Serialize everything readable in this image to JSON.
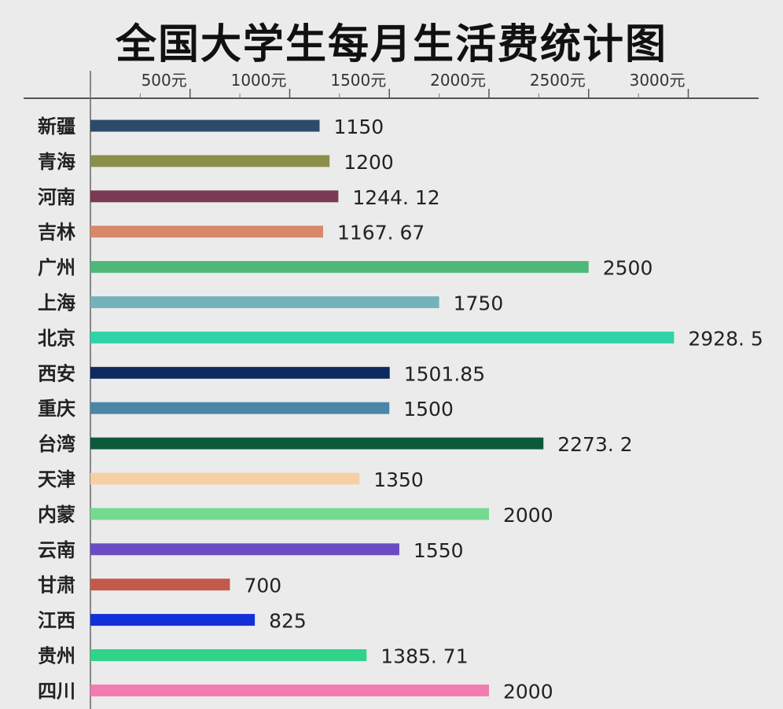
{
  "chart_data": {
    "type": "bar",
    "orientation": "horizontal",
    "title": "全国大学生每月生活费统计图",
    "xlabel": "",
    "ylabel": "",
    "xlim": [
      0,
      3000
    ],
    "ticks": [
      {
        "value": 500,
        "label": "500元"
      },
      {
        "value": 1000,
        "label": "1000元"
      },
      {
        "value": 1500,
        "label": "1500元"
      },
      {
        "value": 2000,
        "label": "2000元"
      },
      {
        "value": 2500,
        "label": "2500元"
      },
      {
        "value": 3000,
        "label": "3000元"
      }
    ],
    "axis_position": "top",
    "grid": false,
    "legend": "none",
    "bars": [
      {
        "category": "新疆",
        "value": 1150,
        "label": "1150",
        "color": "#2e4a6b"
      },
      {
        "category": "青海",
        "value": 1200,
        "label": "1200",
        "color": "#8b8f4a"
      },
      {
        "category": "河南",
        "value": 1244.12,
        "label": "1244. 12",
        "color": "#7a3a55"
      },
      {
        "category": "吉林",
        "value": 1167.67,
        "label": "1167. 67",
        "color": "#d9876a"
      },
      {
        "category": "广州",
        "value": 2500,
        "label": "2500",
        "color": "#4db87a"
      },
      {
        "category": "上海",
        "value": 1750,
        "label": "1750",
        "color": "#74b2bb"
      },
      {
        "category": "北京",
        "value": 2928.5,
        "label": "2928. 5",
        "color": "#2fd3a8"
      },
      {
        "category": "西安",
        "value": 1501.85,
        "label": "1501.85",
        "color": "#0f2a5e"
      },
      {
        "category": "重庆",
        "value": 1500,
        "label": "1500",
        "color": "#4a86a8"
      },
      {
        "category": "台湾",
        "value": 2273.2,
        "label": "2273. 2",
        "color": "#0c5a3c"
      },
      {
        "category": "天津",
        "value": 1350,
        "label": "1350",
        "color": "#f7cfa6"
      },
      {
        "category": "内蒙",
        "value": 2000,
        "label": "2000",
        "color": "#74da8f"
      },
      {
        "category": "云南",
        "value": 1550,
        "label": "1550",
        "color": "#6a4bc4"
      },
      {
        "category": "甘肃",
        "value": 700,
        "label": "700",
        "color": "#c25a4b"
      },
      {
        "category": "江西",
        "value": 825,
        "label": "825",
        "color": "#1230d8"
      },
      {
        "category": "贵州",
        "value": 1385.71,
        "label": "1385. 71",
        "color": "#2fd48a"
      },
      {
        "category": "四川",
        "value": 2000,
        "label": "2000",
        "color": "#f27bb0"
      }
    ]
  }
}
